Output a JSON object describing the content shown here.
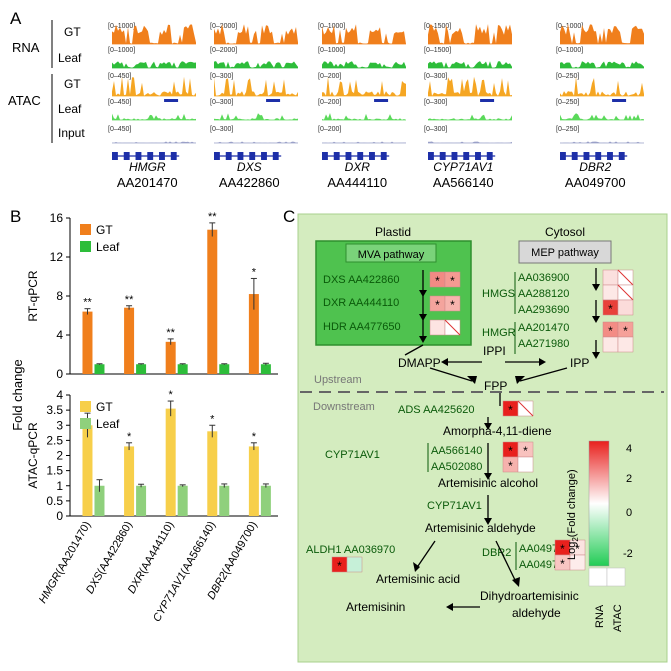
{
  "panelA": {
    "label": "A",
    "row_labels": {
      "rna": "RNA",
      "atac": "ATAC",
      "gt": "GT",
      "leaf": "Leaf",
      "input": "Input"
    },
    "genes": [
      {
        "name": "HMGR",
        "accession": "AA201470",
        "rna_scale": "[0–1000]",
        "atac_scale": "[0–450]"
      },
      {
        "name": "DXS",
        "accession": "AA422860",
        "rna_scale": "[0–2000]",
        "atac_scale": "[0–300]"
      },
      {
        "name": "DXR",
        "accession": "AA444110",
        "rna_scale": "[0–1000]",
        "atac_scale": "[0–200]"
      },
      {
        "name": "CYP71AV1",
        "accession": "AA566140",
        "rna_scale": "[0–1500]",
        "atac_scale": "[0–300]"
      },
      {
        "name": "DBR2",
        "accession": "AA049700",
        "rna_scale": "[0–1000]",
        "atac_scale": "[0–250]"
      }
    ],
    "colors": {
      "gt_rna": "#f07f1c",
      "leaf_rna": "#2dbd3a",
      "gt_atac": "#f5a623",
      "leaf_atac": "#5ad95a",
      "input": "#9aa0c8",
      "gene": "#1d2fa8"
    }
  },
  "panelB": {
    "label": "B",
    "fold_change_label": "Fold change",
    "categories": [
      "HMGR(AA201470)",
      "DXS(AA422860)",
      "DXR(AA444110)",
      "CYP71AV1(AA566140)",
      "DBR2(AA049700)"
    ],
    "category_genes": [
      "HMGR",
      "DXS",
      "DXR",
      "CYP71AV1",
      "DBR2"
    ],
    "category_ids": [
      "(AA201470)",
      "(AA422860)",
      "(AA444110)",
      "(AA566140)",
      "(AA049700)"
    ]
  },
  "chart_data": [
    {
      "type": "bar",
      "ylabel": "RT-qPCR",
      "ylim": [
        0,
        16
      ],
      "yticks": [
        0,
        4,
        8,
        12,
        16
      ],
      "categories": [
        "HMGR(AA201470)",
        "DXS(AA422860)",
        "DXR(AA444110)",
        "CYP71AV1(AA566140)",
        "DBR2(AA049700)"
      ],
      "legend": "top-left",
      "series": [
        {
          "name": "GT",
          "color": "#f07f1c",
          "values": [
            6.4,
            6.8,
            3.3,
            14.8,
            8.2
          ],
          "errors": [
            0.3,
            0.2,
            0.3,
            0.7,
            1.6
          ]
        },
        {
          "name": "Leaf",
          "color": "#2dbd3a",
          "values": [
            1.0,
            1.0,
            1.0,
            1.0,
            1.0
          ],
          "errors": [
            0.05,
            0.05,
            0.05,
            0.05,
            0.1
          ]
        }
      ],
      "significance": [
        "**",
        "**",
        "**",
        "**",
        "*"
      ]
    },
    {
      "type": "bar",
      "ylabel": "ATAC-qPCR",
      "ylim": [
        0,
        4
      ],
      "yticks": [
        0,
        0.5,
        1,
        1.5,
        2,
        2.5,
        3,
        3.5,
        4
      ],
      "categories": [
        "HMGR(AA201470)",
        "DXS(AA422860)",
        "DXR(AA444110)",
        "CYP71AV1(AA566140)",
        "DBR2(AA049700)"
      ],
      "legend": "top-left",
      "series": [
        {
          "name": "GT",
          "color": "#f7cf4a",
          "values": [
            3.0,
            2.3,
            3.55,
            2.8,
            2.3
          ],
          "errors": [
            0.4,
            0.12,
            0.25,
            0.2,
            0.12
          ]
        },
        {
          "name": "Leaf",
          "color": "#8fd07c",
          "values": [
            1.0,
            1.0,
            1.0,
            1.0,
            1.0
          ],
          "errors": [
            0.2,
            0.05,
            0.03,
            0.06,
            0.06
          ]
        }
      ],
      "significance": [
        "*",
        "*",
        "*",
        "*",
        "*"
      ]
    }
  ],
  "panelC": {
    "label": "C",
    "plastid": "Plastid",
    "cytosol": "Cytosol",
    "mva_pathway": "MVA pathway",
    "mep_pathway": "MEP pathway",
    "dxs": "DXS AA422860",
    "dxr": "DXR AA444110",
    "hdr": "HDR AA477650",
    "hmgs": "HMGS",
    "hmgs_ids": [
      "AA036900",
      "AA288120",
      "AA293690"
    ],
    "hmgr": "HMGR",
    "hmgr_ids": [
      "AA201470",
      "AA271980"
    ],
    "dmapp": "DMAPP",
    "ipp": "IPP",
    "ippi": "IPPI",
    "fpp": "FPP",
    "upstream": "Upstream",
    "downstream": "Downstream",
    "ads": "ADS AA425620",
    "amorpha": "Amorpha-4,11-diene",
    "cyp71av1": "CYP71AV1",
    "cyp_ids": [
      "AA566140",
      "AA502080"
    ],
    "art_alcohol": "Artemisinic alcohol",
    "cyp71av1_b": "CYP71AV1",
    "art_aldehyde": "Artemisinic aldehyde",
    "aldh1": "ALDH1 AA036970",
    "dbr2": "DBR2",
    "dbr2_ids": [
      "AA049700",
      "AA049710"
    ],
    "art_acid": "Artemisinic acid",
    "dihydro": "Dihydroartemisinic",
    "dihydro2": "aldehyde",
    "artemisinin": "Artemisinin",
    "colorbar_title": "Log",
    "colorbar_sub": "2",
    "colorbar_title2": "(Fold change)",
    "colorbar_ticks": [
      "4",
      "2",
      "0",
      "-2"
    ],
    "col_labels": [
      "RNA",
      "ATAC"
    ],
    "star": "*"
  }
}
